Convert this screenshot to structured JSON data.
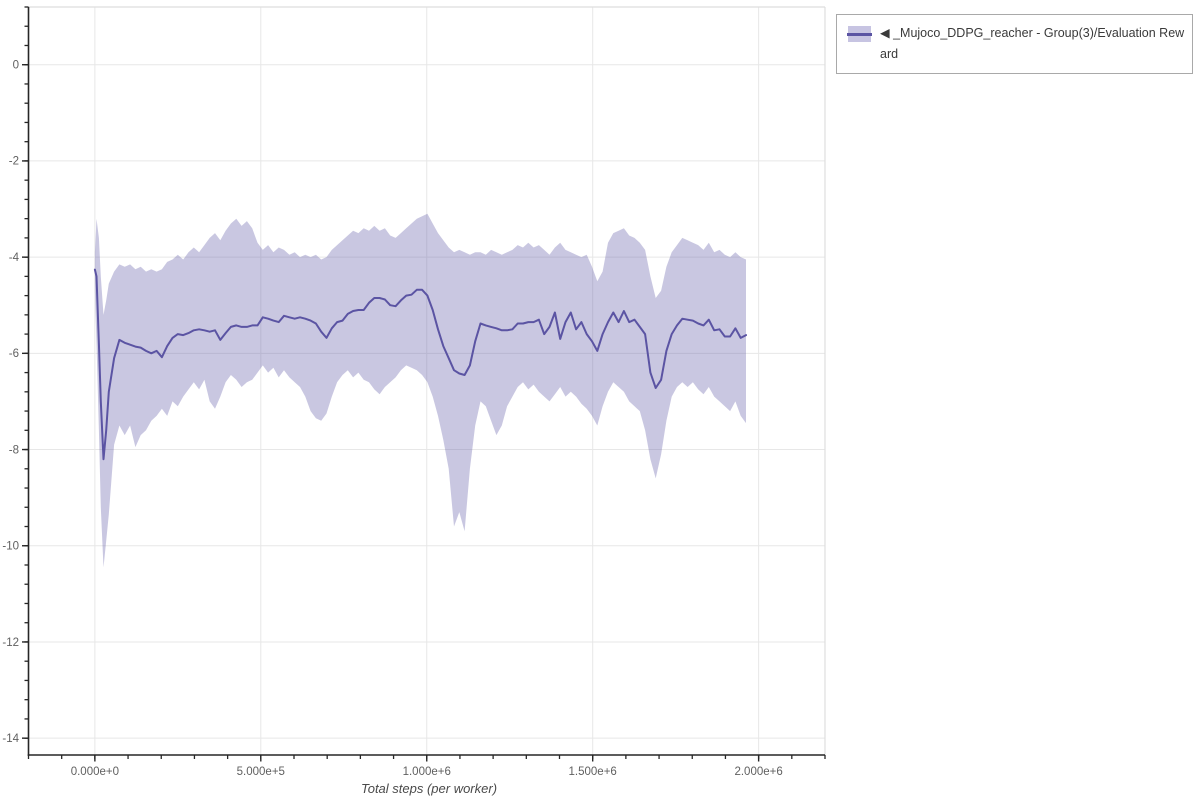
{
  "page": {
    "background": "#ffffff"
  },
  "legend": {
    "items": [
      {
        "label": "◀ _Mujoco_DDPG_reacher - Group(3)/Evaluation Reward",
        "line_color": "#5b54a3",
        "band_color": "#c7c4e2"
      }
    ]
  },
  "chart_data": {
    "type": "line",
    "title": "",
    "xlabel": "Total steps (per worker)",
    "ylabel": "",
    "grid": "major",
    "legend_position": "outside-top-right",
    "xlim": [
      -200000,
      2200000
    ],
    "ylim": [
      -14.35,
      1.2
    ],
    "x_major_ticks": [
      {
        "value": 0,
        "label": "0.000e+0"
      },
      {
        "value": 500000,
        "label": "5.000e+5"
      },
      {
        "value": 1000000,
        "label": "1.000e+6"
      },
      {
        "value": 1500000,
        "label": "1.500e+6"
      },
      {
        "value": 2000000,
        "label": "2.000e+6"
      }
    ],
    "x_minor_step": 100000,
    "y_major_ticks": [
      {
        "value": 0,
        "label": "0"
      },
      {
        "value": -2,
        "label": "-2"
      },
      {
        "value": -4,
        "label": "-4"
      },
      {
        "value": -6,
        "label": "-6"
      },
      {
        "value": -8,
        "label": "-8"
      },
      {
        "value": -10,
        "label": "-10"
      },
      {
        "value": -12,
        "label": "-12"
      },
      {
        "value": -14,
        "label": "-14"
      }
    ],
    "y_minor_step": 0.4,
    "series": [
      {
        "name": "◀ _Mujoco_DDPG_reacher - Group(3)/Evaluation Reward",
        "line_color": "#5b54a3",
        "band_opacity": 0.33,
        "steps": [
          0,
          5000,
          12000,
          18000,
          26000,
          34000,
          42000,
          58000,
          74000,
          90000,
          106000,
          122000,
          138000,
          154000,
          170000,
          186000,
          202000,
          218000,
          234000,
          250000,
          266000,
          282000,
          298000,
          314000,
          330000,
          346000,
          362000,
          378000,
          394000,
          410000,
          426000,
          442000,
          458000,
          474000,
          490000,
          506000,
          522000,
          538000,
          554000,
          570000,
          586000,
          602000,
          618000,
          634000,
          650000,
          666000,
          682000,
          698000,
          714000,
          730000,
          746000,
          762000,
          778000,
          794000,
          810000,
          826000,
          842000,
          858000,
          874000,
          890000,
          906000,
          922000,
          938000,
          954000,
          970000,
          986000,
          1002000,
          1018000,
          1034000,
          1050000,
          1066000,
          1082000,
          1098000,
          1114000,
          1130000,
          1146000,
          1162000,
          1178000,
          1194000,
          1210000,
          1226000,
          1242000,
          1258000,
          1274000,
          1290000,
          1306000,
          1322000,
          1338000,
          1354000,
          1370000,
          1386000,
          1402000,
          1418000,
          1434000,
          1450000,
          1466000,
          1482000,
          1498000,
          1514000,
          1530000,
          1546000,
          1562000,
          1578000,
          1594000,
          1610000,
          1626000,
          1642000,
          1658000,
          1674000,
          1690000,
          1706000,
          1722000,
          1738000,
          1754000,
          1770000,
          1786000,
          1802000,
          1818000,
          1834000,
          1850000,
          1866000,
          1882000,
          1898000,
          1914000,
          1930000,
          1946000,
          1962000
        ],
        "mean": [
          -4.26,
          -4.4,
          -5.8,
          -7.0,
          -8.2,
          -7.6,
          -6.8,
          -6.1,
          -5.72,
          -5.78,
          -5.82,
          -5.86,
          -5.88,
          -5.95,
          -6.0,
          -5.95,
          -6.08,
          -5.85,
          -5.68,
          -5.6,
          -5.62,
          -5.58,
          -5.52,
          -5.5,
          -5.52,
          -5.55,
          -5.52,
          -5.72,
          -5.58,
          -5.45,
          -5.42,
          -5.45,
          -5.45,
          -5.42,
          -5.42,
          -5.25,
          -5.28,
          -5.32,
          -5.35,
          -5.22,
          -5.25,
          -5.28,
          -5.25,
          -5.28,
          -5.32,
          -5.38,
          -5.55,
          -5.68,
          -5.48,
          -5.35,
          -5.32,
          -5.18,
          -5.12,
          -5.1,
          -5.1,
          -4.95,
          -4.85,
          -4.85,
          -4.88,
          -5.0,
          -5.02,
          -4.9,
          -4.8,
          -4.78,
          -4.68,
          -4.68,
          -4.8,
          -5.1,
          -5.5,
          -5.85,
          -6.1,
          -6.35,
          -6.42,
          -6.45,
          -6.25,
          -5.75,
          -5.38,
          -5.42,
          -5.45,
          -5.48,
          -5.52,
          -5.52,
          -5.5,
          -5.38,
          -5.38,
          -5.35,
          -5.35,
          -5.3,
          -5.6,
          -5.45,
          -5.15,
          -5.7,
          -5.35,
          -5.15,
          -5.5,
          -5.35,
          -5.6,
          -5.75,
          -5.95,
          -5.6,
          -5.35,
          -5.15,
          -5.35,
          -5.12,
          -5.35,
          -5.3,
          -5.45,
          -5.6,
          -6.4,
          -6.72,
          -6.55,
          -5.95,
          -5.6,
          -5.42,
          -5.28,
          -5.3,
          -5.32,
          -5.38,
          -5.42,
          -5.3,
          -5.52,
          -5.5,
          -5.65,
          -5.65,
          -5.48,
          -5.68,
          -5.62
        ],
        "band_upper": [
          -3.9,
          -3.2,
          -3.6,
          -4.4,
          -5.2,
          -4.9,
          -4.55,
          -4.3,
          -4.15,
          -4.2,
          -4.15,
          -4.25,
          -4.2,
          -4.3,
          -4.25,
          -4.3,
          -4.25,
          -4.1,
          -4.05,
          -3.95,
          -4.05,
          -3.9,
          -3.8,
          -3.9,
          -3.75,
          -3.6,
          -3.5,
          -3.65,
          -3.45,
          -3.3,
          -3.2,
          -3.35,
          -3.25,
          -3.4,
          -3.7,
          -3.85,
          -3.75,
          -3.9,
          -3.8,
          -3.85,
          -3.95,
          -3.9,
          -4.0,
          -3.95,
          -4.0,
          -3.95,
          -4.05,
          -4.0,
          -3.85,
          -3.75,
          -3.65,
          -3.55,
          -3.45,
          -3.5,
          -3.4,
          -3.45,
          -3.35,
          -3.45,
          -3.4,
          -3.55,
          -3.6,
          -3.5,
          -3.4,
          -3.3,
          -3.2,
          -3.15,
          -3.1,
          -3.3,
          -3.5,
          -3.65,
          -3.8,
          -3.9,
          -3.85,
          -3.9,
          -3.95,
          -3.9,
          -3.9,
          -3.95,
          -3.85,
          -3.9,
          -3.95,
          -3.9,
          -3.85,
          -3.75,
          -3.8,
          -3.7,
          -3.8,
          -3.75,
          -3.85,
          -3.95,
          -3.8,
          -3.7,
          -3.85,
          -3.9,
          -3.95,
          -4.0,
          -3.95,
          -4.2,
          -4.5,
          -4.3,
          -3.7,
          -3.5,
          -3.45,
          -3.4,
          -3.55,
          -3.6,
          -3.7,
          -3.85,
          -4.4,
          -4.85,
          -4.7,
          -4.2,
          -3.9,
          -3.75,
          -3.6,
          -3.65,
          -3.7,
          -3.75,
          -3.85,
          -3.7,
          -3.9,
          -3.85,
          -3.95,
          -4.0,
          -3.9,
          -4.0,
          -4.05
        ],
        "band_lower": [
          -4.7,
          -5.8,
          -7.6,
          -9.2,
          -10.45,
          -9.9,
          -9.35,
          -7.9,
          -7.5,
          -7.7,
          -7.5,
          -7.95,
          -7.7,
          -7.6,
          -7.4,
          -7.3,
          -7.15,
          -7.3,
          -7.0,
          -7.1,
          -6.9,
          -6.75,
          -6.6,
          -6.75,
          -6.55,
          -7.0,
          -7.15,
          -6.9,
          -6.6,
          -6.45,
          -6.55,
          -6.7,
          -6.6,
          -6.55,
          -6.4,
          -6.25,
          -6.4,
          -6.3,
          -6.5,
          -6.35,
          -6.5,
          -6.6,
          -6.7,
          -6.9,
          -7.2,
          -7.35,
          -7.4,
          -7.25,
          -6.9,
          -6.6,
          -6.45,
          -6.35,
          -6.5,
          -6.4,
          -6.55,
          -6.6,
          -6.75,
          -6.85,
          -6.7,
          -6.6,
          -6.5,
          -6.35,
          -6.25,
          -6.3,
          -6.35,
          -6.45,
          -6.6,
          -6.9,
          -7.3,
          -7.8,
          -8.4,
          -9.6,
          -9.3,
          -9.7,
          -8.4,
          -7.5,
          -7.0,
          -7.1,
          -7.4,
          -7.7,
          -7.5,
          -7.1,
          -6.9,
          -6.7,
          -6.6,
          -6.75,
          -6.65,
          -6.8,
          -6.9,
          -7.0,
          -6.85,
          -6.7,
          -6.9,
          -6.8,
          -6.9,
          -7.05,
          -7.15,
          -7.3,
          -7.5,
          -7.1,
          -6.8,
          -6.6,
          -6.7,
          -6.8,
          -7.0,
          -7.1,
          -7.2,
          -7.6,
          -8.2,
          -8.6,
          -8.1,
          -7.4,
          -6.9,
          -6.7,
          -6.6,
          -6.7,
          -6.6,
          -6.75,
          -6.85,
          -6.7,
          -6.9,
          -7.0,
          -7.1,
          -7.2,
          -7.0,
          -7.3,
          -7.45
        ]
      }
    ]
  }
}
